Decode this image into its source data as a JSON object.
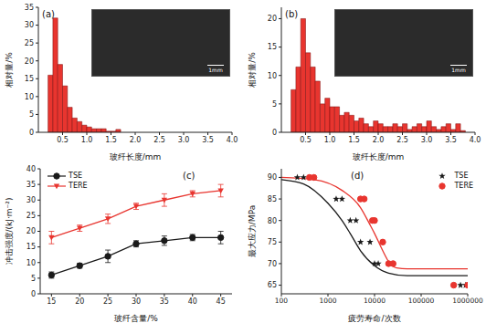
{
  "chart_data": [
    {
      "type": "histogram",
      "title": "(a)",
      "x_label": "玻纤长度/mm",
      "y_label": "相对量/%",
      "color": "#e8352f",
      "annotations": [
        "1mm"
      ],
      "bins": [
        0.2,
        0.3,
        0.4,
        0.5,
        0.6,
        0.7,
        0.8,
        0.9,
        1.0,
        1.1,
        1.2,
        1.3,
        1.4,
        1.5,
        1.6,
        1.7
      ],
      "values": [
        16,
        32,
        19,
        13,
        7,
        4,
        3,
        2,
        1.5,
        1,
        1,
        1,
        0.3,
        0.3,
        0.8
      ],
      "xlim": [
        0,
        4
      ],
      "xticks": [
        0.5,
        {
          "value": 1,
          "label": "1.0"
        },
        1.5,
        {
          "value": 2,
          "label": "2.0"
        },
        2.5,
        {
          "value": 3,
          "label": "3.0"
        },
        3.5,
        {
          "value": 4,
          "label": "4.0"
        }
      ],
      "ylim": [
        0,
        35
      ],
      "yticks": [
        0,
        5,
        10,
        15,
        20,
        25,
        30,
        35
      ]
    },
    {
      "type": "histogram",
      "title": "(b)",
      "x_label": "玻纤长度/mm",
      "y_label": "相对量/%",
      "color": "#e8352f",
      "annotations": [
        "1mm"
      ],
      "bins": [
        0.2,
        0.3,
        0.4,
        0.5,
        0.6,
        0.7,
        0.8,
        0.9,
        1.0,
        1.1,
        1.2,
        1.3,
        1.4,
        1.5,
        1.6,
        1.7,
        1.8,
        1.9,
        2.0,
        2.1,
        2.2,
        2.3,
        2.4,
        2.5,
        2.6,
        2.7,
        2.8,
        2.9,
        3.0,
        3.1,
        3.2,
        3.3,
        3.4,
        3.5,
        3.6,
        3.7,
        3.8
      ],
      "values": [
        7.5,
        11.5,
        20,
        14,
        11.5,
        9,
        5,
        6,
        4.5,
        4.5,
        3,
        3.5,
        3,
        2,
        2.5,
        1.5,
        1,
        2,
        1.5,
        1,
        1,
        1.5,
        1,
        1.5,
        0.5,
        1,
        1.5,
        1,
        2,
        1,
        0.5,
        1,
        1.5,
        0.5,
        1.5,
        0.3
      ],
      "xlim": [
        0,
        4
      ],
      "xticks": [
        0.5,
        {
          "value": 1,
          "label": "1.0"
        },
        1.5,
        {
          "value": 2,
          "label": "2.0"
        },
        2.5,
        {
          "value": 3,
          "label": "3.0"
        },
        3.5,
        {
          "value": 4,
          "label": "4.0"
        }
      ],
      "ylim": [
        0,
        22
      ],
      "yticks": [
        0,
        5,
        10,
        15,
        20
      ]
    },
    {
      "type": "line",
      "title": "(c)",
      "x_label": "玻纤含量/%",
      "y_label": "冲击强度/(kJ·m⁻²)",
      "legend": "upper left",
      "x": [
        15,
        20,
        25,
        30,
        35,
        40,
        45
      ],
      "series": [
        {
          "name": "TSE",
          "color": "#1a1a1a",
          "marker": "circle",
          "values": [
            6,
            9,
            12,
            16,
            17,
            18,
            18
          ],
          "errors": [
            1,
            0.8,
            2,
            1,
            1.5,
            1,
            2
          ]
        },
        {
          "name": "TERE",
          "color": "#e8352f",
          "marker": "triangle",
          "values": [
            18,
            21,
            24,
            28,
            30,
            32,
            33
          ],
          "errors": [
            2,
            1,
            1.5,
            1,
            2,
            1,
            2
          ]
        }
      ],
      "xlim": [
        13,
        47
      ],
      "xticks": [
        15,
        20,
        25,
        30,
        35,
        40,
        45
      ],
      "ylim": [
        0,
        40
      ],
      "yticks": [
        0,
        5,
        10,
        15,
        20,
        25,
        30,
        35,
        40
      ]
    },
    {
      "type": "scatter",
      "title": "(d)",
      "x_label": "疲劳寿命/次数",
      "y_label": "最大应力/MPa",
      "legend": "upper right",
      "log": "x",
      "series": [
        {
          "name": "TSE",
          "color": "#1a1a1a",
          "marker": "star",
          "x": [
            220,
            300,
            1500,
            2000,
            3000,
            4000,
            5000,
            8000,
            10000,
            12000,
            700000,
            900000
          ],
          "values": [
            90,
            90,
            85,
            85,
            80,
            80,
            75,
            75,
            70,
            70,
            65,
            65
          ]
        },
        {
          "name": "TERE",
          "color": "#e8352f",
          "marker": "circle",
          "x": [
            400,
            500,
            5000,
            6000,
            9000,
            10000,
            15000,
            20000,
            25000,
            500000,
            1000000
          ],
          "values": [
            90,
            90,
            85,
            85,
            80,
            80,
            75,
            70,
            70,
            65,
            65
          ]
        },
        {
          "type": "line",
          "color": "#1a1a1a",
          "x": [
            100,
            300,
            1000,
            2000,
            3000,
            5000,
            10000,
            20000,
            50000,
            1000000
          ],
          "values": [
            89.5,
            88.5,
            84,
            80,
            77,
            73,
            69.5,
            67.8,
            67.2,
            67.2
          ]
        },
        {
          "type": "line",
          "color": "#e8352f",
          "x": [
            100,
            500,
            2000,
            5000,
            8000,
            10000,
            15000,
            20000,
            30000,
            50000,
            1000000
          ],
          "values": [
            90,
            89.5,
            87,
            83,
            79,
            77,
            73,
            70.5,
            69,
            68.8,
            68.8
          ]
        }
      ],
      "xlim": [
        100,
        1000000
      ],
      "xticks": [
        100,
        1000,
        10000,
        100000,
        1000000
      ],
      "ylim": [
        63,
        92
      ],
      "yticks": [
        65,
        70,
        75,
        80,
        85,
        90
      ]
    }
  ]
}
